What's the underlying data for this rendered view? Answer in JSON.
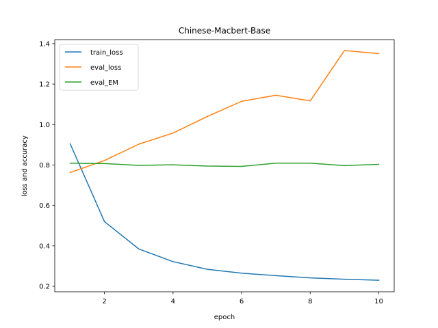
{
  "chart_data": {
    "type": "line",
    "title": "Chinese-Macbert-Base",
    "xlabel": "epoch",
    "ylabel": "loss and accuracy",
    "x": [
      1,
      2,
      3,
      4,
      5,
      6,
      7,
      8,
      9,
      10
    ],
    "xlim": [
      0.55,
      10.45
    ],
    "ylim": [
      0.173,
      1.42
    ],
    "xticks": [
      2,
      4,
      6,
      8,
      10
    ],
    "yticks": [
      0.2,
      0.4,
      0.6,
      0.8,
      1.0,
      1.2,
      1.4
    ],
    "xtick_labels": [
      "2",
      "4",
      "6",
      "8",
      "10"
    ],
    "ytick_labels": [
      "0.2",
      "0.4",
      "0.6",
      "0.8",
      "1.0",
      "1.2",
      "1.4"
    ],
    "grid": false,
    "legend_position": "top-left",
    "series": [
      {
        "name": "train_loss",
        "color": "#1f77b4",
        "values": [
          0.905,
          0.52,
          0.385,
          0.322,
          0.284,
          0.265,
          0.253,
          0.242,
          0.235,
          0.23
        ]
      },
      {
        "name": "eval_loss",
        "color": "#ff7f0e",
        "values": [
          0.763,
          0.822,
          0.903,
          0.958,
          1.04,
          1.115,
          1.145,
          1.117,
          1.366,
          1.351
        ]
      },
      {
        "name": "eval_EM",
        "color": "#2ca02c",
        "values": [
          0.809,
          0.807,
          0.798,
          0.801,
          0.795,
          0.793,
          0.809,
          0.809,
          0.797,
          0.803
        ]
      }
    ]
  }
}
